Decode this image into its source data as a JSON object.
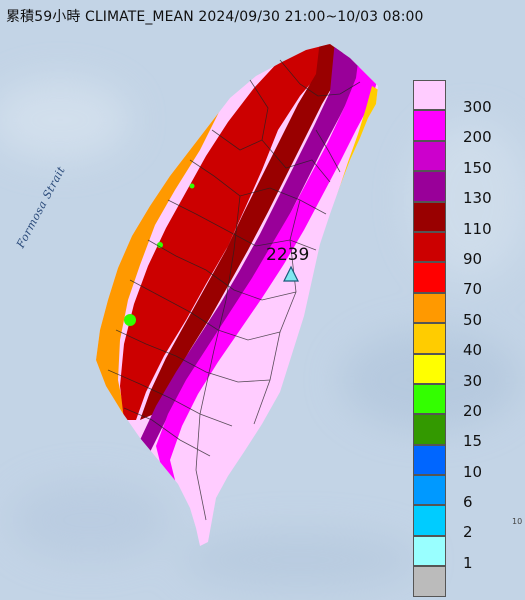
{
  "title": "累積59小時 CLIMATE_MEAN 2024/09/30 21:00~10/03 08:00",
  "sea_label": "Formosa Strait",
  "peak_station": {
    "value_label": "2239",
    "marker_icon": "triangle-station-icon",
    "marker_color": "#7ee8f0"
  },
  "corner_text": "10",
  "legend": {
    "items": [
      {
        "label": "300",
        "color": "#ffccff"
      },
      {
        "label": "200",
        "color": "#ff00ff"
      },
      {
        "label": "150",
        "color": "#cc00cc"
      },
      {
        "label": "130",
        "color": "#990099"
      },
      {
        "label": "110",
        "color": "#990000"
      },
      {
        "label": "90",
        "color": "#cc0000"
      },
      {
        "label": "70",
        "color": "#ff0000"
      },
      {
        "label": "50",
        "color": "#ff9900"
      },
      {
        "label": "40",
        "color": "#ffcc00"
      },
      {
        "label": "30",
        "color": "#ffff00"
      },
      {
        "label": "20",
        "color": "#33ff00"
      },
      {
        "label": "15",
        "color": "#339900"
      },
      {
        "label": "10",
        "color": "#0066ff"
      },
      {
        "label": "6",
        "color": "#0099ff"
      },
      {
        "label": "2",
        "color": "#00ccff"
      },
      {
        "label": "1",
        "color": "#99ffff"
      },
      {
        "label": "",
        "color": "#bbbbbb"
      }
    ]
  }
}
